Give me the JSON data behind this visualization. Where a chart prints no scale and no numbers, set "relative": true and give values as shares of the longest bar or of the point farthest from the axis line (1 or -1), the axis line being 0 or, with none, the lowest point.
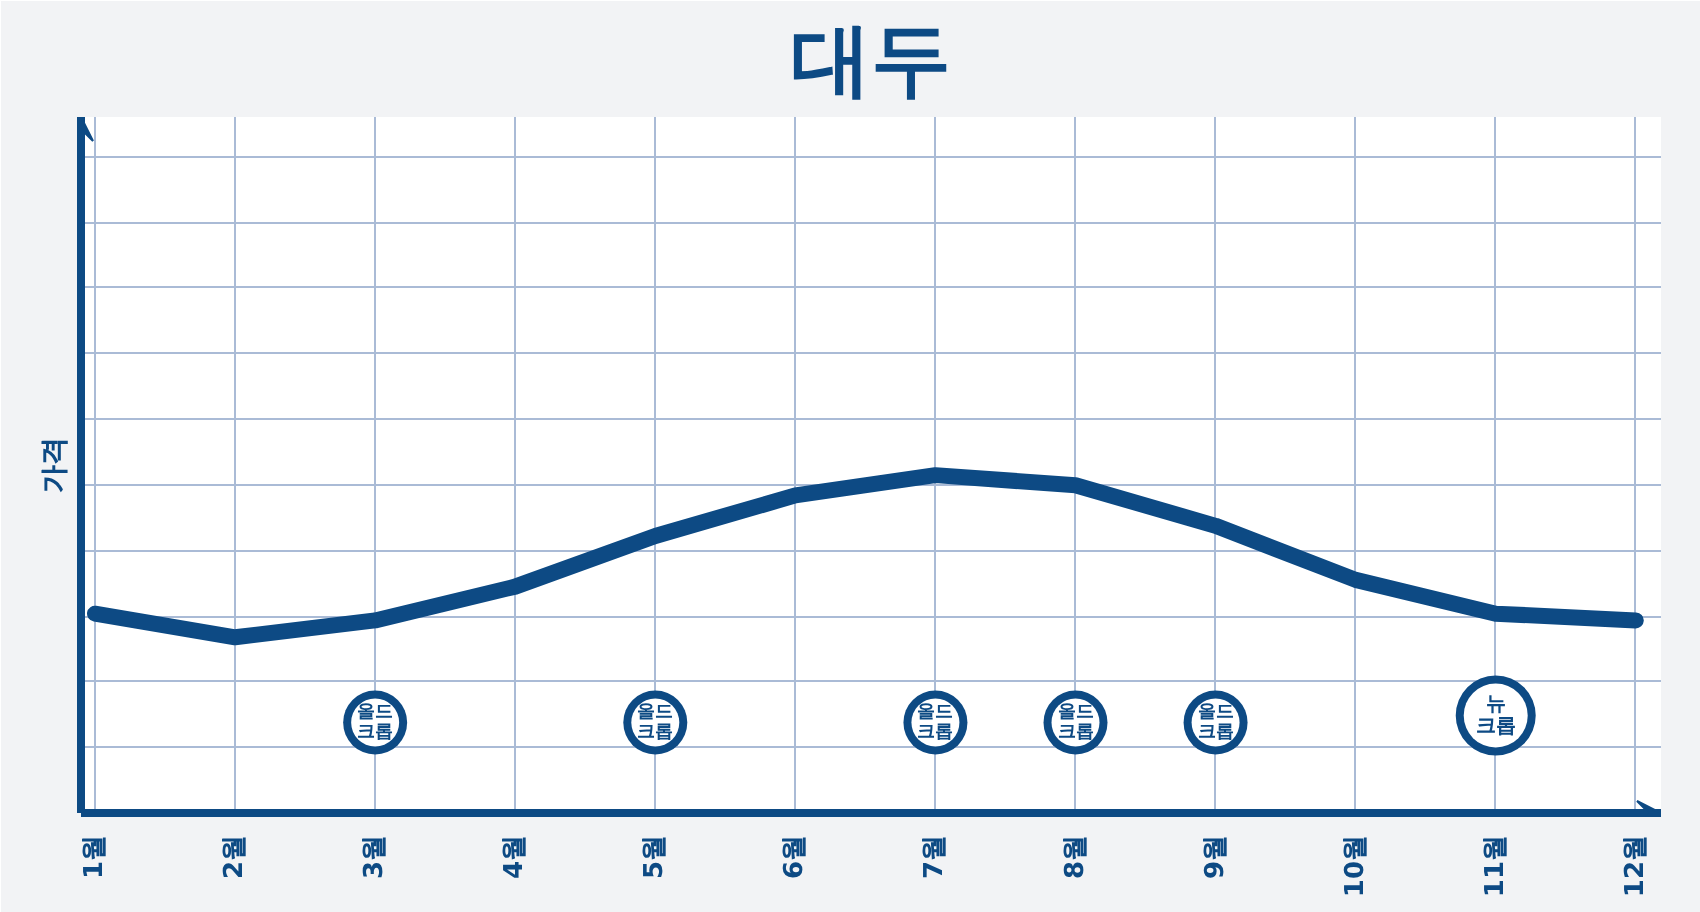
{
  "chart_data": {
    "type": "line",
    "relative": true,
    "title": "대두",
    "ylabel": "가격",
    "categories": [
      "1월",
      "2월",
      "3월",
      "4월",
      "5월",
      "6월",
      "7월",
      "8월",
      "9월",
      "10월",
      "11월",
      "12월"
    ],
    "series": [
      {
        "color": "#0d4a84",
        "values": [
          0.59,
          0.52,
          0.57,
          0.67,
          0.82,
          0.94,
          1,
          0.97,
          0.85,
          0.69,
          0.59,
          0.57
        ]
      }
    ],
    "annotations": [
      {
        "text": "올드\n크롭",
        "x": "3월"
      },
      {
        "text": "올드\n크롭",
        "x": "5월"
      },
      {
        "text": "올드\n크롭",
        "x": "7월"
      },
      {
        "text": "올드\n크롭",
        "x": "8월"
      },
      {
        "text": "올드\n크롭",
        "x": "9월"
      },
      {
        "text": "뉴\n크롭",
        "x": "11월"
      }
    ],
    "grid": true,
    "marker": "none",
    "line_style": "solid"
  }
}
